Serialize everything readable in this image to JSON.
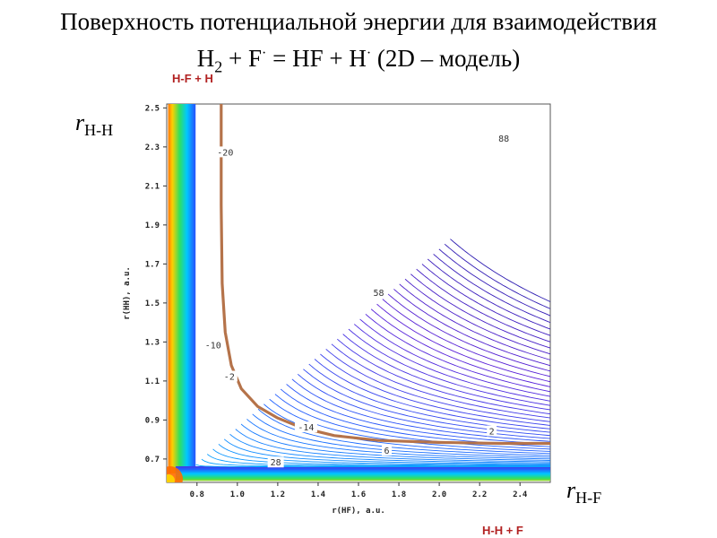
{
  "header": {
    "line1": "Поверхность потенциальной энергии для взаимодействия",
    "line2": {
      "h": "H",
      "h_sub": "2",
      "plus_f": " + F",
      "dot": "·",
      "eq_hf_h": " = HF + H",
      "rest": " (2D – модель)"
    }
  },
  "corner_labels": {
    "top": "H-F + H",
    "bottom": "H-H + F"
  },
  "axis_variables": {
    "y": {
      "symbol": "r",
      "subscript": "H-H"
    },
    "x": {
      "symbol": "r",
      "subscript": "H-F"
    }
  },
  "chart_data": {
    "type": "contour",
    "xlabel": "r(HF), a.u.",
    "ylabel": "r(HH), a.u.",
    "xlim": [
      0.65,
      2.55
    ],
    "ylim": [
      0.58,
      2.52
    ],
    "xticks": [
      0.8,
      1.0,
      1.2,
      1.4,
      1.6,
      1.8,
      2.0,
      2.2,
      2.4
    ],
    "yticks": [
      0.7,
      0.9,
      1.1,
      1.3,
      1.5,
      1.7,
      1.9,
      2.1,
      2.3,
      2.5
    ],
    "contour_labels": [
      {
        "text": "-20",
        "x": 0.94,
        "y": 2.27
      },
      {
        "text": "88",
        "x": 2.32,
        "y": 2.34
      },
      {
        "text": "58",
        "x": 1.7,
        "y": 1.55
      },
      {
        "text": "-10",
        "x": 0.88,
        "y": 1.28
      },
      {
        "text": "-2",
        "x": 0.96,
        "y": 1.12
      },
      {
        "text": "-14",
        "x": 1.34,
        "y": 0.86
      },
      {
        "text": "2",
        "x": 2.26,
        "y": 0.84
      },
      {
        "text": "6",
        "x": 1.74,
        "y": 0.74
      },
      {
        "text": "28",
        "x": 1.19,
        "y": 0.68
      }
    ],
    "reaction_path": {
      "x": [
        0.92,
        0.92,
        0.925,
        0.94,
        0.97,
        1.02,
        1.1,
        1.2,
        1.32,
        1.48,
        1.7,
        2.0,
        2.3,
        2.55
      ],
      "y": [
        2.52,
        2.0,
        1.6,
        1.35,
        1.18,
        1.06,
        0.97,
        0.91,
        0.86,
        0.82,
        0.795,
        0.785,
        0.78,
        0.78
      ]
    },
    "color_scale": [
      "#ff2a00",
      "#ffd000",
      "#30e060",
      "#00c8ff",
      "#2060ff",
      "#5a20d8",
      "#1a1aa0"
    ]
  }
}
